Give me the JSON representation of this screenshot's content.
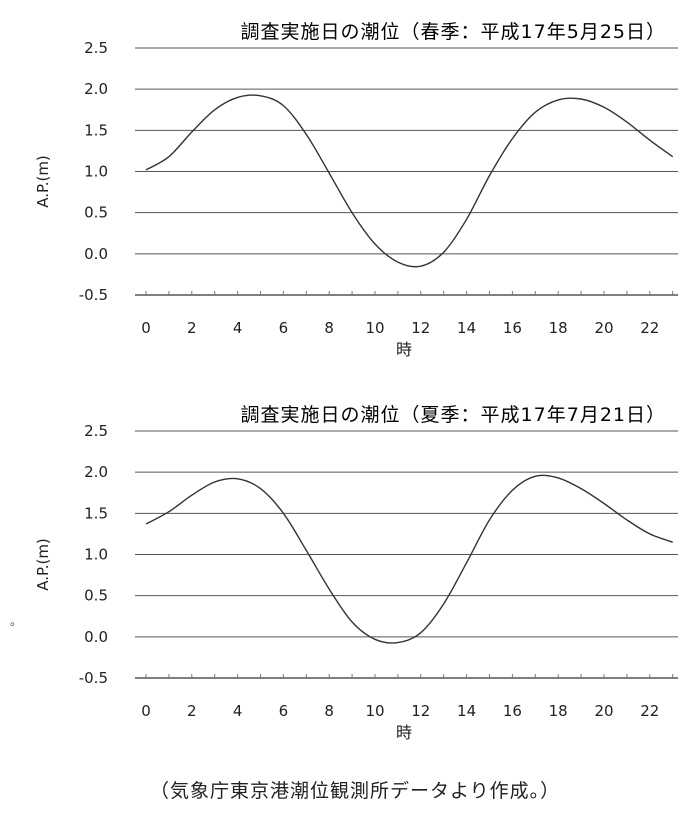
{
  "chart_data": [
    {
      "type": "line",
      "title": "調査実施日の潮位（春季：平成17年5月25日）",
      "xlabel": "時",
      "ylabel": "A.P.(m)",
      "x_ticks": [
        "0",
        "2",
        "4",
        "6",
        "8",
        "10",
        "12",
        "14",
        "16",
        "18",
        "20",
        "22"
      ],
      "y_ticks": [
        "2.5",
        "2.0",
        "1.5",
        "1.0",
        "0.5",
        "0.0",
        "-0.5"
      ],
      "xlim": [
        0,
        23
      ],
      "ylim": [
        -0.5,
        2.5
      ],
      "grid": true,
      "series": [
        {
          "x": [
            0,
            1,
            2,
            3,
            4,
            5,
            6,
            7,
            8,
            9,
            10,
            11,
            12,
            13,
            14,
            15,
            16,
            17,
            18,
            19,
            20,
            21,
            22,
            23
          ],
          "values": [
            1.02,
            1.18,
            1.48,
            1.75,
            1.9,
            1.92,
            1.8,
            1.45,
            0.98,
            0.5,
            0.12,
            -0.1,
            -0.15,
            0.02,
            0.42,
            0.95,
            1.4,
            1.72,
            1.87,
            1.88,
            1.78,
            1.6,
            1.38,
            1.18
          ]
        }
      ]
    },
    {
      "type": "line",
      "title": "調査実施日の潮位（夏季：平成17年7月21日）",
      "xlabel": "時",
      "ylabel": "A.P.(m)",
      "x_ticks": [
        "0",
        "2",
        "4",
        "6",
        "8",
        "10",
        "12",
        "14",
        "16",
        "18",
        "20",
        "22"
      ],
      "y_ticks": [
        "2.5",
        "2.0",
        "1.5",
        "1.0",
        "0.5",
        "0.0",
        "-0.5"
      ],
      "xlim": [
        0,
        23
      ],
      "ylim": [
        -0.5,
        2.5
      ],
      "grid": true,
      "series": [
        {
          "x": [
            0,
            1,
            2,
            3,
            4,
            5,
            6,
            7,
            8,
            9,
            10,
            11,
            12,
            13,
            14,
            15,
            16,
            17,
            18,
            19,
            20,
            21,
            22,
            23
          ],
          "values": [
            1.37,
            1.52,
            1.72,
            1.88,
            1.92,
            1.8,
            1.5,
            1.05,
            0.58,
            0.18,
            -0.03,
            -0.07,
            0.05,
            0.4,
            0.9,
            1.42,
            1.78,
            1.95,
            1.93,
            1.8,
            1.62,
            1.42,
            1.25,
            1.15
          ]
        }
      ]
    }
  ],
  "source_note": "（気象庁東京港潮位観測所データより作成。）",
  "stray_mark": "。"
}
